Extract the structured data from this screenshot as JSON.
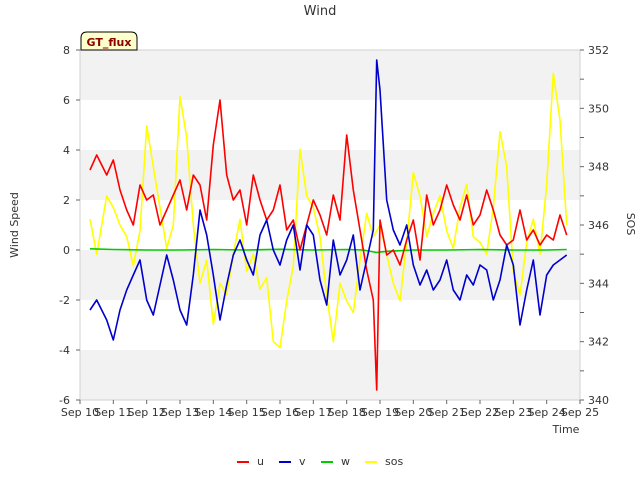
{
  "chart_data": {
    "type": "line",
    "title": "Wind",
    "badge": "GT_flux",
    "xlabel": "Time",
    "ylabel": "Wind Speed",
    "y2label": "SOS",
    "x_ticks": [
      "Sep 10",
      "Sep 11",
      "Sep 12",
      "Sep 13",
      "Sep 14",
      "Sep 15",
      "Sep 16",
      "Sep 17",
      "Sep 18",
      "Sep 19",
      "Sep 20",
      "Sep 21",
      "Sep 22",
      "Sep 23",
      "Sep 24",
      "Sep 25"
    ],
    "xlim": [
      0,
      15
    ],
    "ylim": [
      -6,
      8
    ],
    "y_ticks": [
      -6,
      -4,
      -2,
      0,
      2,
      4,
      6,
      8
    ],
    "y2lim": [
      340,
      352
    ],
    "y2_ticks": [
      340,
      342,
      344,
      346,
      348,
      350,
      352
    ],
    "series": [
      {
        "name": "u",
        "axis": "left",
        "color": "#ff0000",
        "x": [
          0.3,
          0.5,
          0.8,
          1.0,
          1.2,
          1.4,
          1.6,
          1.8,
          2.0,
          2.2,
          2.4,
          2.6,
          2.8,
          3.0,
          3.2,
          3.4,
          3.6,
          3.8,
          4.0,
          4.2,
          4.4,
          4.6,
          4.8,
          5.0,
          5.2,
          5.4,
          5.6,
          5.8,
          6.0,
          6.2,
          6.4,
          6.6,
          6.8,
          7.0,
          7.2,
          7.4,
          7.6,
          7.8,
          8.0,
          8.2,
          8.4,
          8.6,
          8.8,
          8.9,
          9.0,
          9.2,
          9.4,
          9.6,
          9.8,
          10.0,
          10.2,
          10.4,
          10.6,
          10.8,
          11.0,
          11.2,
          11.4,
          11.6,
          11.8,
          12.0,
          12.2,
          12.4,
          12.6,
          12.8,
          13.0,
          13.2,
          13.4,
          13.6,
          13.8,
          14.0,
          14.2,
          14.4,
          14.6
        ],
        "values": [
          3.2,
          3.8,
          3.0,
          3.6,
          2.4,
          1.6,
          1.0,
          2.6,
          2.0,
          2.2,
          1.0,
          1.6,
          2.2,
          2.8,
          1.6,
          3.0,
          2.6,
          1.2,
          4.2,
          6.0,
          3.0,
          2.0,
          2.4,
          1.0,
          3.0,
          2.0,
          1.2,
          1.6,
          2.6,
          0.8,
          1.2,
          0.0,
          1.0,
          2.0,
          1.4,
          0.6,
          2.2,
          1.2,
          4.6,
          2.4,
          0.8,
          -0.8,
          -2.0,
          -5.6,
          1.2,
          -0.2,
          0.0,
          -0.6,
          0.4,
          1.2,
          -0.4,
          2.2,
          1.0,
          1.6,
          2.6,
          1.8,
          1.2,
          2.2,
          1.0,
          1.4,
          2.4,
          1.6,
          0.6,
          0.2,
          0.4,
          1.6,
          0.4,
          0.8,
          0.2,
          0.6,
          0.4,
          1.4,
          0.6
        ]
      },
      {
        "name": "v",
        "axis": "left",
        "color": "#0000cc",
        "x": [
          0.3,
          0.5,
          0.8,
          1.0,
          1.2,
          1.4,
          1.6,
          1.8,
          2.0,
          2.2,
          2.4,
          2.6,
          2.8,
          3.0,
          3.2,
          3.4,
          3.6,
          3.8,
          4.0,
          4.2,
          4.4,
          4.6,
          4.8,
          5.0,
          5.2,
          5.4,
          5.6,
          5.8,
          6.0,
          6.2,
          6.4,
          6.6,
          6.8,
          7.0,
          7.2,
          7.4,
          7.6,
          7.8,
          8.0,
          8.2,
          8.4,
          8.6,
          8.8,
          8.9,
          9.0,
          9.2,
          9.4,
          9.6,
          9.8,
          10.0,
          10.2,
          10.4,
          10.6,
          10.8,
          11.0,
          11.2,
          11.4,
          11.6,
          11.8,
          12.0,
          12.2,
          12.4,
          12.6,
          12.8,
          13.0,
          13.2,
          13.4,
          13.6,
          13.8,
          14.0,
          14.2,
          14.4,
          14.6
        ],
        "values": [
          -2.4,
          -2.0,
          -2.8,
          -3.6,
          -2.4,
          -1.6,
          -1.0,
          -0.4,
          -2.0,
          -2.6,
          -1.4,
          -0.2,
          -1.2,
          -2.4,
          -3.0,
          -1.0,
          1.6,
          0.6,
          -1.0,
          -2.8,
          -1.4,
          -0.2,
          0.4,
          -0.4,
          -1.0,
          0.6,
          1.2,
          0.0,
          -0.6,
          0.4,
          1.0,
          -0.8,
          1.0,
          0.6,
          -1.2,
          -2.2,
          0.4,
          -1.0,
          -0.4,
          0.6,
          -1.6,
          -0.4,
          0.8,
          7.6,
          6.4,
          2.0,
          0.8,
          0.2,
          1.0,
          -0.6,
          -1.4,
          -0.8,
          -1.6,
          -1.2,
          -0.4,
          -1.6,
          -2.0,
          -1.0,
          -1.4,
          -0.6,
          -0.8,
          -2.0,
          -1.2,
          0.2,
          -0.6,
          -3.0,
          -1.6,
          -0.4,
          -2.6,
          -1.0,
          -0.6,
          -0.4,
          -0.2
        ]
      },
      {
        "name": "w",
        "axis": "left",
        "color": "#00cc00",
        "x": [
          0.3,
          1.0,
          2.0,
          3.0,
          4.0,
          5.0,
          6.0,
          7.0,
          8.0,
          8.5,
          8.9,
          9.2,
          10.0,
          11.0,
          12.0,
          13.0,
          14.0,
          14.6
        ],
        "values": [
          0.05,
          0.02,
          0.0,
          0.0,
          0.02,
          0.0,
          0.03,
          0.0,
          0.02,
          0.0,
          -0.1,
          -0.05,
          0.0,
          0.0,
          0.02,
          0.0,
          0.0,
          0.02
        ]
      },
      {
        "name": "sos",
        "axis": "right",
        "color": "#ffff00",
        "x": [
          0.3,
          0.5,
          0.8,
          1.0,
          1.2,
          1.4,
          1.6,
          1.8,
          2.0,
          2.2,
          2.4,
          2.6,
          2.8,
          3.0,
          3.2,
          3.4,
          3.6,
          3.8,
          4.0,
          4.2,
          4.4,
          4.6,
          4.8,
          5.0,
          5.2,
          5.4,
          5.6,
          5.8,
          6.0,
          6.2,
          6.4,
          6.6,
          6.8,
          7.0,
          7.2,
          7.4,
          7.6,
          7.8,
          8.0,
          8.2,
          8.4,
          8.6,
          8.8,
          9.0,
          9.2,
          9.4,
          9.6,
          9.8,
          10.0,
          10.2,
          10.4,
          10.6,
          10.8,
          11.0,
          11.2,
          11.4,
          11.6,
          11.8,
          12.0,
          12.2,
          12.4,
          12.6,
          12.8,
          13.0,
          13.2,
          13.4,
          13.6,
          13.8,
          14.0,
          14.2,
          14.4,
          14.6
        ],
        "values": [
          346.2,
          345.0,
          347.0,
          346.6,
          346.0,
          345.6,
          344.6,
          345.8,
          349.4,
          348.0,
          346.6,
          345.2,
          346.0,
          350.4,
          349.0,
          346.0,
          344.0,
          344.8,
          342.6,
          344.0,
          343.6,
          345.0,
          346.2,
          344.4,
          345.0,
          343.8,
          344.2,
          342.0,
          341.8,
          343.4,
          344.6,
          348.6,
          347.0,
          346.6,
          345.6,
          343.6,
          342.0,
          344.0,
          343.4,
          343.0,
          344.8,
          346.4,
          345.6,
          346.0,
          345.0,
          344.0,
          343.4,
          345.4,
          347.8,
          347.0,
          345.6,
          346.4,
          347.0,
          345.8,
          345.2,
          346.6,
          347.4,
          345.6,
          345.4,
          345.0,
          346.6,
          349.2,
          348.0,
          344.4,
          343.6,
          345.4,
          346.2,
          345.0,
          347.4,
          351.2,
          349.6,
          346.0
        ]
      }
    ]
  }
}
